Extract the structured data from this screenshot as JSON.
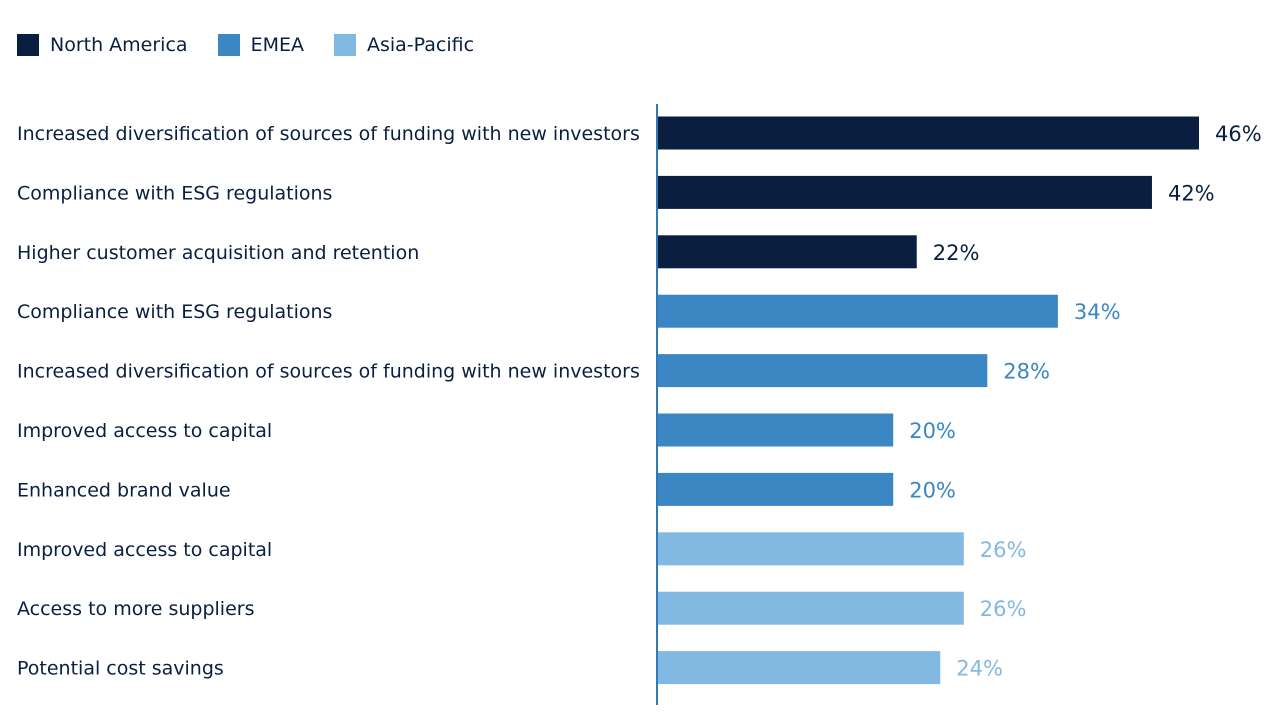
{
  "chart_data": {
    "type": "bar",
    "orientation": "horizontal",
    "legend_position": "top-left",
    "grid": false,
    "xlim": [
      0,
      46
    ],
    "series": [
      {
        "name": "North America",
        "color": "#0a1f3f",
        "label_color": "#0a1f3f",
        "categories": [
          "Increased diversification of sources of funding with new investors",
          "Compliance with ESG regulations",
          "Higher customer acquisition and retention"
        ],
        "values": [
          46,
          42,
          22
        ],
        "labels": [
          "46%",
          "42%",
          "22%"
        ]
      },
      {
        "name": "EMEA",
        "color": "#3a87c4",
        "label_color": "#3a87c4",
        "categories": [
          "Compliance with ESG regulations",
          "Increased diversification of sources of funding with new investors",
          "Improved access to capital",
          "Enhanced brand value"
        ],
        "values": [
          34,
          28,
          20,
          20
        ],
        "labels": [
          "34%",
          "28%",
          "20%",
          "20%"
        ]
      },
      {
        "name": "Asia-Pacific",
        "color": "#82b9e2",
        "label_color": "#82b9e2",
        "categories": [
          "Improved access to capital",
          "Access to more suppliers",
          "Potential cost savings"
        ],
        "values": [
          26,
          26,
          24
        ],
        "labels": [
          "26%",
          "26%",
          "24%"
        ]
      }
    ],
    "axis_color": "#2e7ab8"
  }
}
